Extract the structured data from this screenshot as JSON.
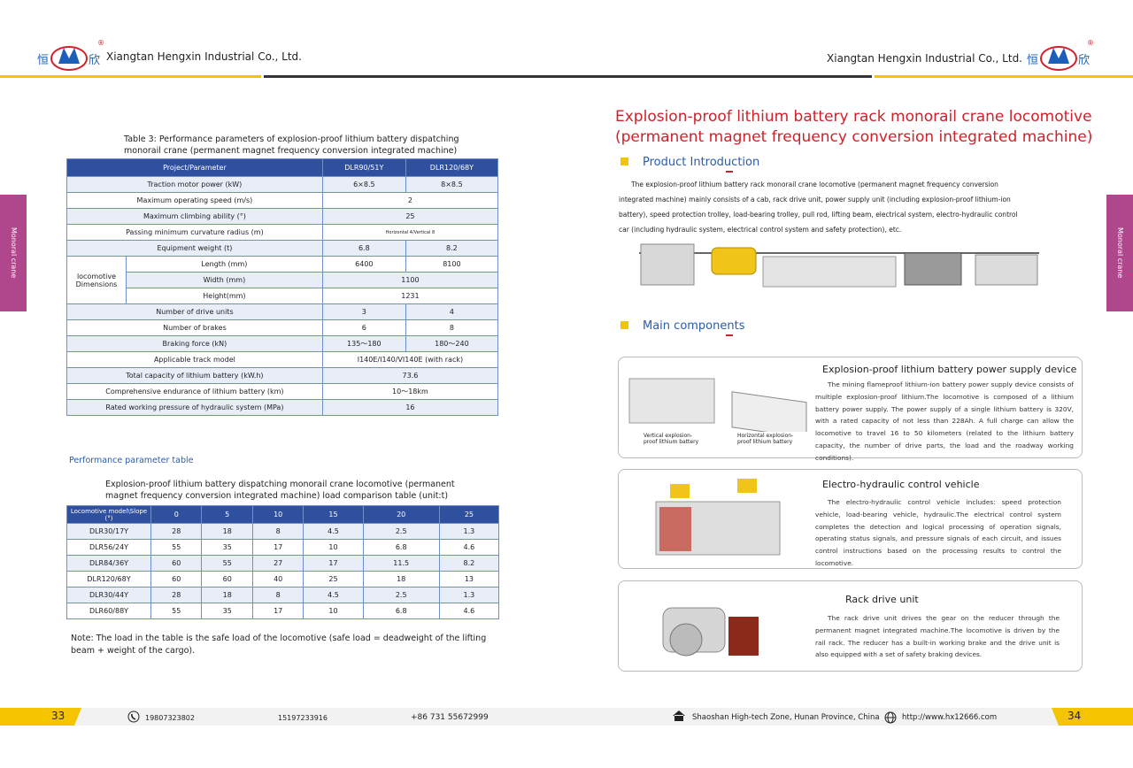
{
  "header": {
    "logo_left": [
      "恒",
      "欣"
    ],
    "company_left": "Xiangtan Hengxin Industrial Co., Ltd.",
    "company_right": "Xiangtan Hengxin Industrial Co., Ltd.",
    "logo_right": [
      "恒",
      "欣"
    ],
    "registered": "®"
  },
  "side_tabs": [
    "Monoral crane",
    "Monoral crane"
  ],
  "table3": {
    "caption": "Table 3: Performance parameters of explosion-proof lithium battery dispatching monorail crane (permanent magnet frequency conversion integrated machine)",
    "header": [
      "Project/Parameter",
      "DLR90/51Y",
      "DLR120/68Y"
    ],
    "rows": [
      {
        "parameter": "Traction motor power (kW)",
        "values": [
          "6×8.5",
          "8×8.5"
        ]
      },
      {
        "parameter": "Maximum operating speed (m/s)",
        "values": [
          "2"
        ]
      },
      {
        "parameter": "Maximum climbing ability (°)",
        "values": [
          "25"
        ]
      },
      {
        "parameter": "Passing minimum curvature radius (m)",
        "values": [
          "Horizontal 4/Vertical 8"
        ]
      },
      {
        "parameter": "Equipment weight (t)",
        "values": [
          "6.8",
          "8.2"
        ]
      },
      {
        "group": "locomotive Dimensions",
        "rows": [
          {
            "parameter": "Length (mm)",
            "values": [
              "6400",
              "8100"
            ]
          },
          {
            "parameter": "Width (mm)",
            "values": [
              "1100"
            ]
          },
          {
            "parameter": "Height(mm)",
            "values": [
              "1231"
            ]
          }
        ]
      },
      {
        "parameter": "Number of drive units",
        "values": [
          "3",
          "4"
        ]
      },
      {
        "parameter": "Number of brakes",
        "values": [
          "6",
          "8"
        ]
      },
      {
        "parameter": "Braking force (kN)",
        "values": [
          "135～180",
          "180～240"
        ]
      },
      {
        "parameter": "Applicable track model",
        "values": [
          "I140E/I140/VI140E (with rack)"
        ]
      },
      {
        "parameter": "Total capacity of lithium battery (kW.h)",
        "values": [
          "73.6"
        ]
      },
      {
        "parameter": "Comprehensive endurance of lithium battery (km)",
        "values": [
          "10～18km"
        ]
      },
      {
        "parameter": "Rated working pressure of hydraulic system (MPa)",
        "values": [
          "16"
        ]
      }
    ]
  },
  "perf_label": "Performance parameter table",
  "load_table": {
    "caption": "Explosion-proof lithium battery dispatching monorail crane locomotive (permanent magnet frequency conversion integrated machine) load comparison table (unit:t)",
    "header": [
      "Locomotive model\\Slope (°)",
      "0",
      "5",
      "10",
      "15",
      "20",
      "25"
    ],
    "rows": [
      [
        "DLR30/17Y",
        "28",
        "18",
        "8",
        "4.5",
        "2.5",
        "1.3"
      ],
      [
        "DLR56/24Y",
        "55",
        "35",
        "17",
        "10",
        "6.8",
        "4.6"
      ],
      [
        "DLR84/36Y",
        "60",
        "55",
        "27",
        "17",
        "11.5",
        "8.2"
      ],
      [
        "DLR120/68Y",
        "60",
        "60",
        "40",
        "25",
        "18",
        "13"
      ],
      [
        "DLR30/44Y",
        "28",
        "18",
        "8",
        "4.5",
        "2.5",
        "1.3"
      ],
      [
        "DLR60/88Y",
        "55",
        "35",
        "17",
        "10",
        "6.8",
        "4.6"
      ]
    ]
  },
  "note": "Note: The load in the table is the safe load of the locomotive (safe load = deadweight of the lifting beam + weight of the cargo).",
  "right": {
    "title": [
      "Explosion-proof lithium battery rack monorail crane locomotive",
      "(permanent magnet frequency conversion integrated machine)"
    ],
    "intro_heading": "Product Introduction",
    "intro_text": "The explosion-proof lithium battery rack monorail crane locomotive (permanent magnet frequency conversion integrated machine) mainly consists of a cab, rack drive unit, power supply unit (including explosion-proof lithium-ion battery), speed protection trolley, load-bearing trolley, pull rod, lifting beam, electrical system, electro-hydraulic control car (including hydraulic system, electrical control system and safety protection), etc.",
    "components_heading": "Main components",
    "components": [
      {
        "title": "Explosion-proof lithium battery power supply device",
        "text": "The mining flameproof lithium-ion battery power supply device consists of multiple explosion-proof lithium.The locomotive is composed of a lithium battery power supply. The power supply of a single lithium battery is 320V, with a rated capacity of not less than 228Ah. A full charge can allow the locomotive to travel 16 to 50 kilometers (related to the lithium battery capacity, the number of drive parts, the load and the roadway working conditions).",
        "image_labels": [
          "Vertical explosion-proof lithium battery",
          "Horizontal explosion-proof lithium battery"
        ]
      },
      {
        "title": "Electro-hydraulic control vehicle",
        "text": "The electro-hydraulic control vehicle includes: speed protection vehicle, load-bearing vehicle, hydraulic.The electrical control system completes the detection and logical processing of operation signals, operating status signals, and pressure signals of each circuit, and issues control instructions based on the processing results to control the locomotive."
      },
      {
        "title": "Rack drive unit",
        "text": "The rack drive unit drives the gear on the reducer through the permanent magnet integrated machine.The locomotive is driven by the rail rack. The reducer has a built-in working brake and the drive unit is also equipped with a set of safety braking devices."
      }
    ]
  },
  "footer": {
    "page_left": "33",
    "phone1": "19807323802",
    "phone2": "15197233916",
    "phone3": "+86 731 55672999",
    "address": "Shaoshan High-tech Zone, Hunan Province, China",
    "url": "http://www.hx12666.com",
    "page_right": "34"
  }
}
